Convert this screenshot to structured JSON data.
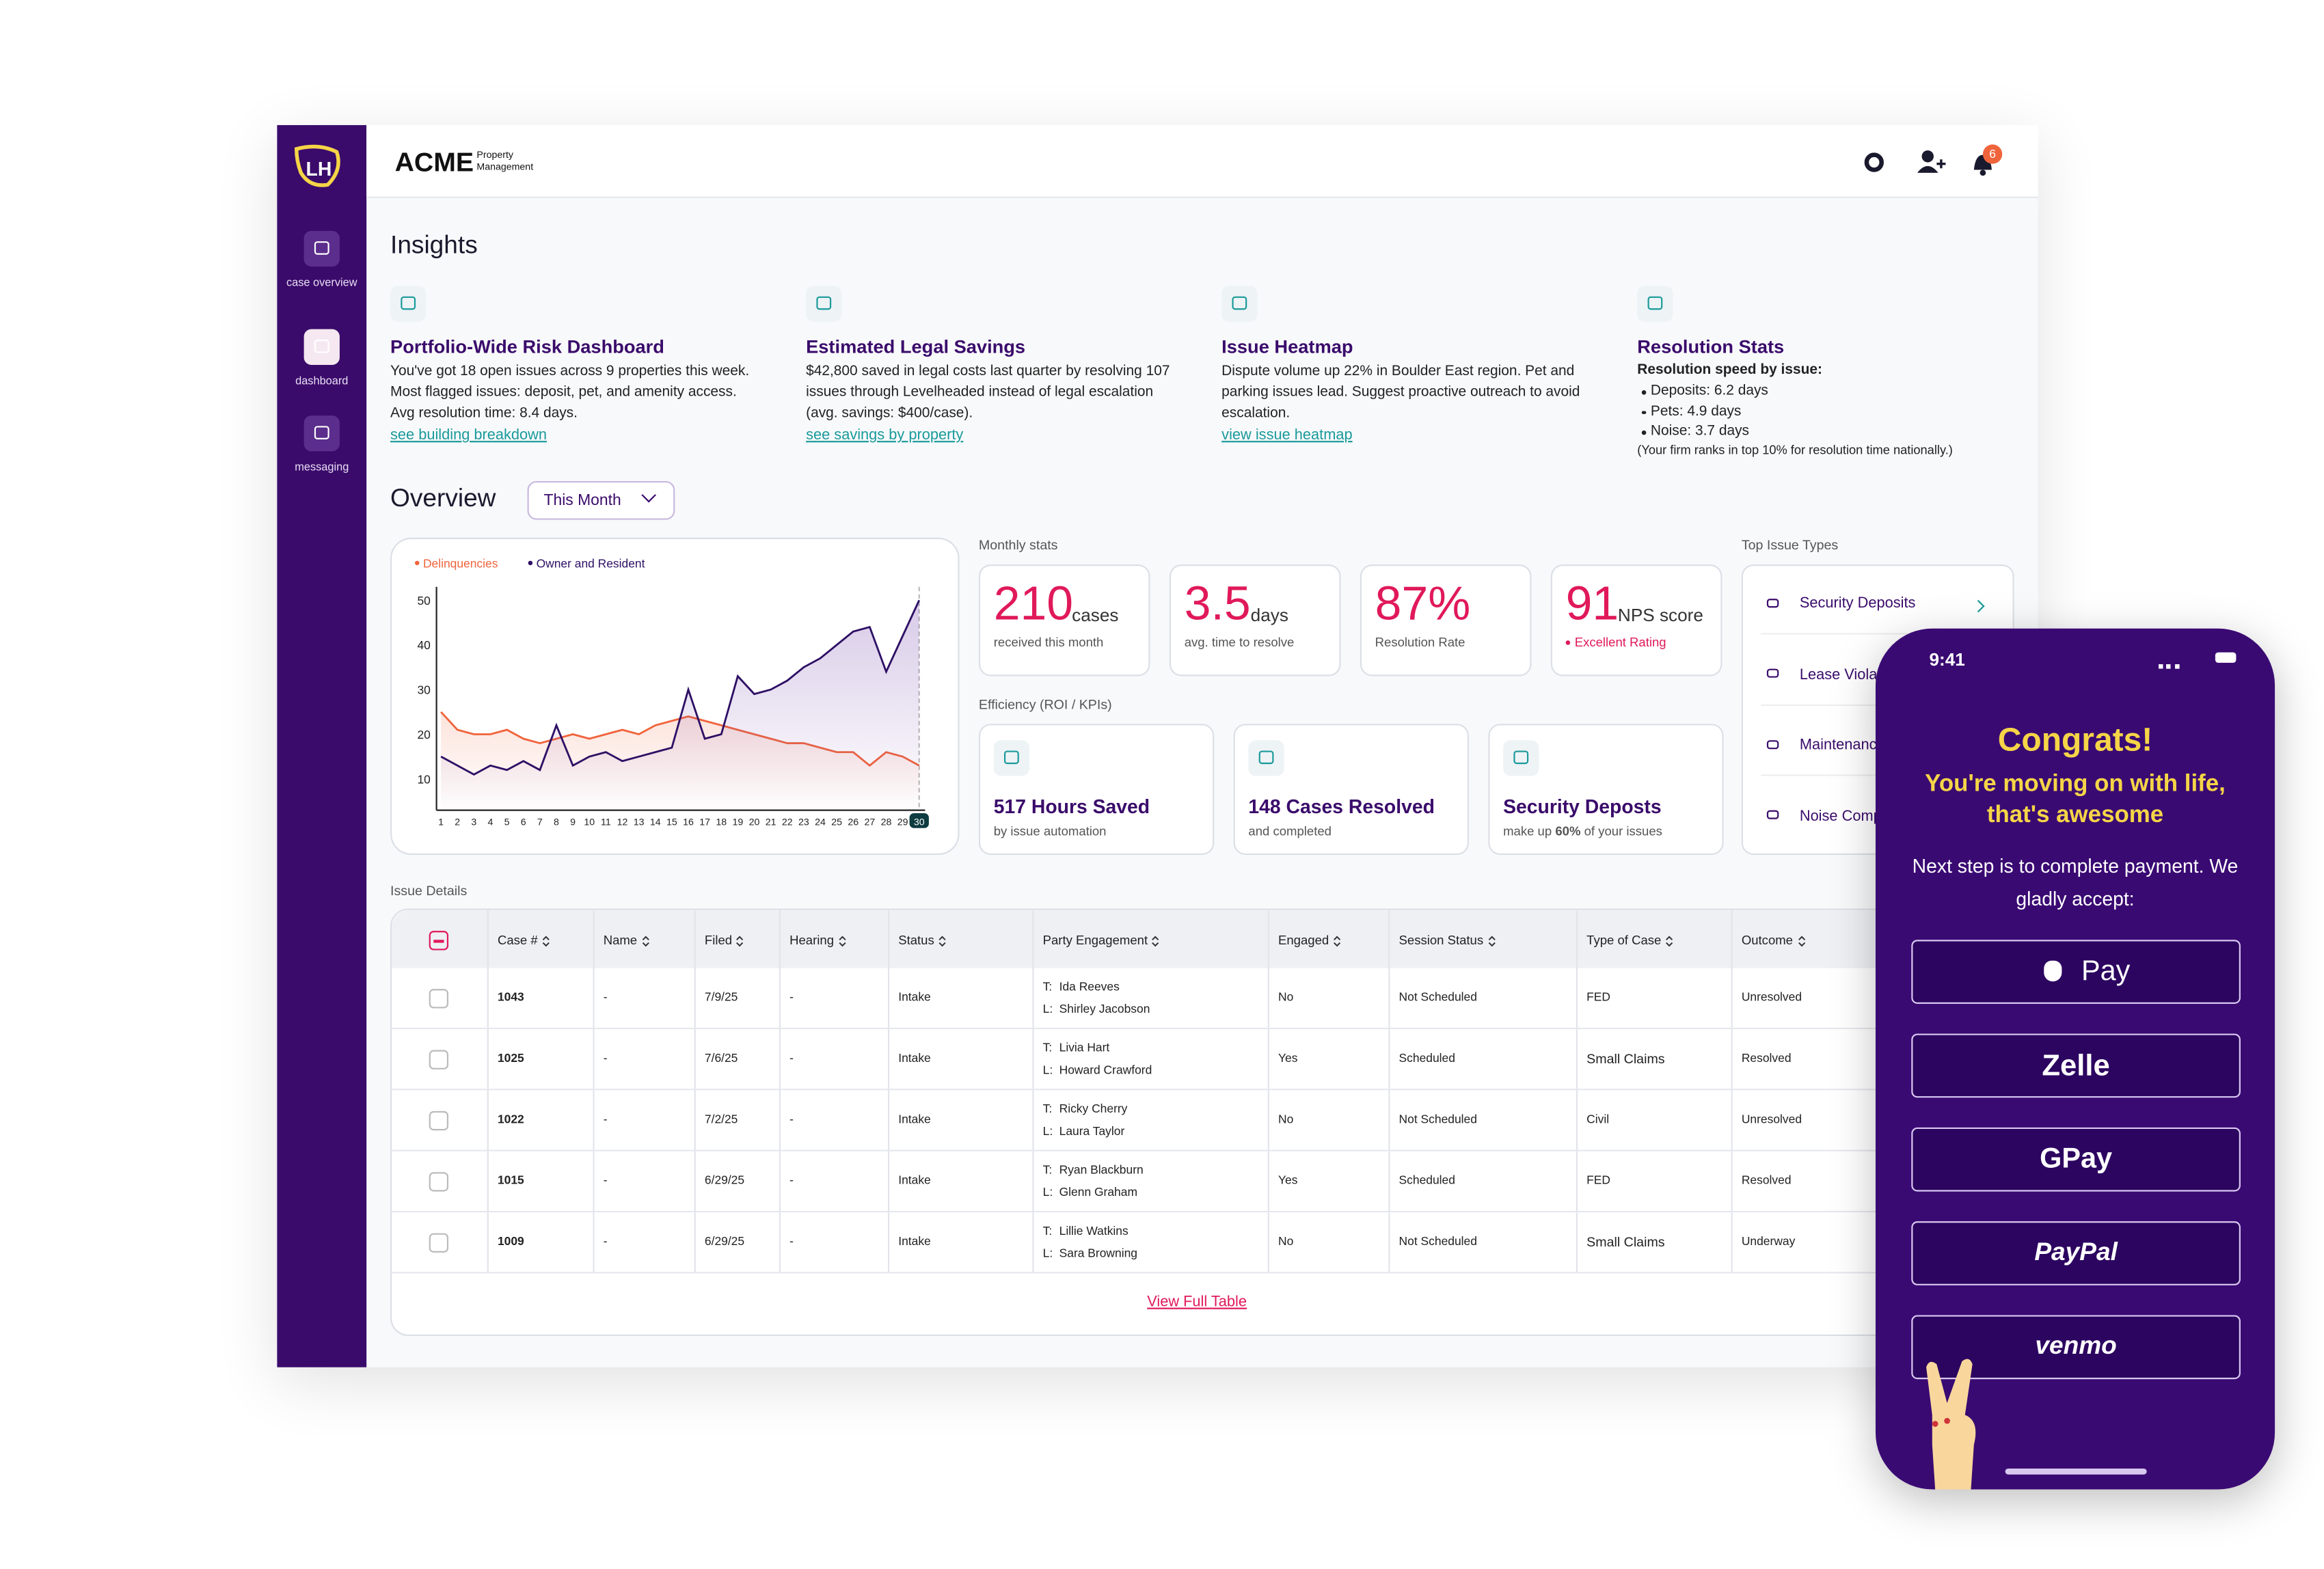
{
  "brand": {
    "name": "ACME",
    "sub": "Property Management"
  },
  "nav": [
    {
      "label": "case overview"
    },
    {
      "label": "dashboard"
    },
    {
      "label": "messaging"
    }
  ],
  "notifications": "6",
  "insights": {
    "title": "Insights",
    "cards": [
      {
        "title": "Portfolio-Wide Risk Dashboard",
        "body": "You've got 18 open issues across 9 properties this week. Most flagged issues: deposit, pet, and amenity access. Avg resolution time: 8.4 days.",
        "link": "see building breakdown"
      },
      {
        "title": "Estimated Legal Savings",
        "body": "$42,800 saved in legal costs last quarter by resolving 107 issues through Levelheaded instead of legal escalation (avg. savings: $400/case).",
        "link": "see savings by property"
      },
      {
        "title": "Issue Heatmap",
        "body": "Dispute volume up 22% in Boulder East region. Pet and parking issues lead. Suggest proactive outreach to avoid escalation.",
        "link": "view issue heatmap"
      },
      {
        "title": "Resolution Stats",
        "subtitle": "Resolution speed by issue:",
        "bullets": [
          "Deposits: 6.2 days",
          "Pets: 4.9 days",
          "Noise: 3.7 days"
        ],
        "note": "(Your firm ranks in top 10% for resolution time nationally.)"
      }
    ]
  },
  "overview": {
    "title": "Overview",
    "period": "This Month"
  },
  "chart": {
    "type": "line",
    "categories": [
      1,
      2,
      3,
      4,
      5,
      6,
      7,
      8,
      9,
      10,
      11,
      12,
      13,
      14,
      15,
      16,
      17,
      18,
      19,
      20,
      21,
      22,
      23,
      24,
      25,
      26,
      27,
      28,
      29,
      30
    ],
    "series": [
      {
        "name": "Delinquencies",
        "color": "#f0643c",
        "values": [
          25,
          21,
          20,
          20,
          21,
          19,
          18,
          19,
          20,
          19,
          20,
          21,
          20,
          22,
          23,
          24,
          23,
          22,
          21,
          20,
          19,
          18,
          18,
          17,
          16,
          16,
          13,
          16,
          15,
          13
        ]
      },
      {
        "name": "Owner and Resident",
        "color": "#2e1065",
        "values": [
          15,
          13,
          11,
          13,
          12,
          14,
          12,
          22,
          13,
          15,
          16,
          14,
          15,
          16,
          17,
          30,
          19,
          20,
          33,
          29,
          30,
          32,
          35,
          37,
          40,
          43,
          44,
          34,
          42,
          50
        ]
      }
    ],
    "ylim": [
      3,
      53
    ],
    "yticks": [
      10,
      20,
      30,
      40,
      50
    ]
  },
  "monthly_stats": {
    "label": "Monthly stats",
    "items": [
      {
        "value": "210",
        "unit": "cases",
        "caption": "received this month"
      },
      {
        "value": "3.5",
        "unit": "days",
        "caption": "avg. time to resolve"
      },
      {
        "value": "87%",
        "caption": "Resolution Rate"
      },
      {
        "value": "91",
        "unit": "NPS score",
        "caption": "Excellent Rating"
      }
    ]
  },
  "efficiency": {
    "label": "Efficiency (ROI / KPIs)",
    "items": [
      {
        "title": "517 Hours Saved",
        "caption": "by issue automation"
      },
      {
        "title": "148 Cases Resolved",
        "caption": "and completed"
      },
      {
        "title": "Security Deposts",
        "caption_pre": "make up",
        "caption_bold": "60%",
        "caption_post": "of your issues"
      }
    ]
  },
  "top_issues": {
    "label": "Top Issue Types",
    "items": [
      "Security Deposits",
      "Lease Violations",
      "Maintenance",
      "Noise Complaints"
    ]
  },
  "table": {
    "label": "Issue Details",
    "columns": [
      "Case #",
      "Name",
      "Filed",
      "Hearing",
      "Status",
      "Party Engagement",
      "Engaged",
      "Session Status",
      "Type of Case",
      "Outcome"
    ],
    "party_prefixes": [
      "T:",
      "L:"
    ],
    "rows": [
      [
        "1043",
        "-",
        "7/9/25",
        "-",
        "Intake",
        [
          "Ida Reeves",
          "Shirley Jacobson"
        ],
        "No",
        "Not Scheduled",
        "FED",
        "Unresolved"
      ],
      [
        "1025",
        "-",
        "7/6/25",
        "-",
        "Intake",
        [
          "Livia Hart",
          "Howard Crawford"
        ],
        "Yes",
        "Scheduled",
        "Small Claims",
        "Resolved"
      ],
      [
        "1022",
        "-",
        "7/2/25",
        "-",
        "Intake",
        [
          "Ricky Cherry",
          "Laura Taylor"
        ],
        "No",
        "Not Scheduled",
        "Civil",
        "Unresolved"
      ],
      [
        "1015",
        "-",
        "6/29/25",
        "-",
        "Intake",
        [
          "Ryan Blackburn",
          "Glenn Graham"
        ],
        "Yes",
        "Scheduled",
        "FED",
        "Resolved"
      ],
      [
        "1009",
        "-",
        "6/29/25",
        "-",
        "Intake",
        [
          "Lillie Watkins",
          "Sara Browning"
        ],
        "No",
        "Not Scheduled",
        "Small Claims",
        "Underway"
      ]
    ],
    "footer_link": "View Full Table"
  },
  "phone": {
    "time": "9:41",
    "headline": "Congrats!",
    "subhead": "You're moving on with life, that's awesome",
    "body": "Next step is to complete payment. We gladly accept:",
    "payments": [
      "Pay",
      "Zelle",
      "GPay",
      "PayPal",
      "venmo"
    ]
  }
}
